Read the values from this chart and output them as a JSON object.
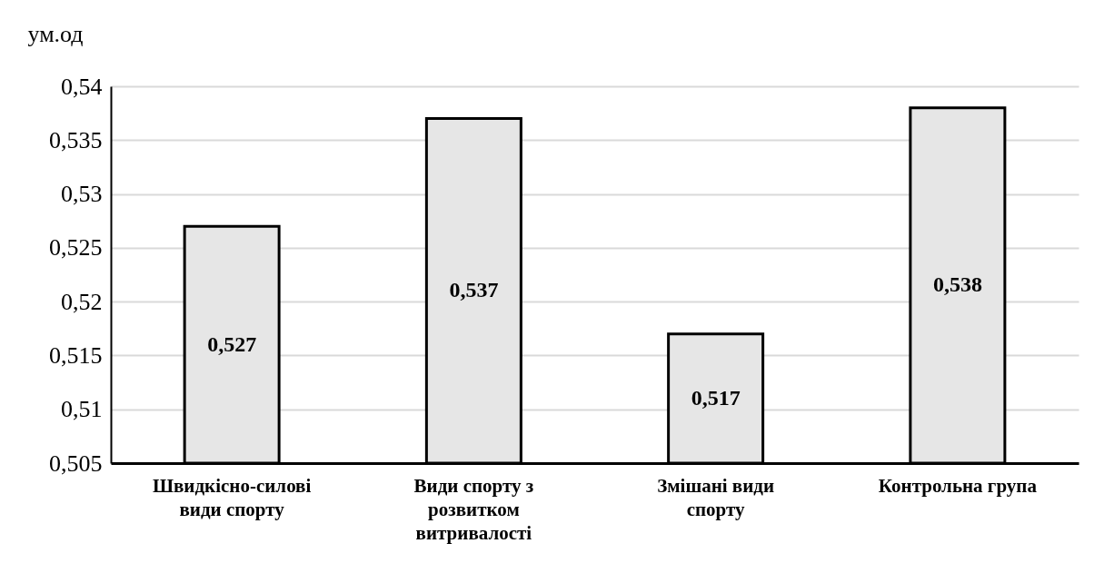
{
  "chart_data": {
    "type": "bar",
    "ylabel": "ум.од",
    "categories": [
      "Швидкісно-силові види спорту",
      "Види спорту з розвитком витривалості",
      "Змішані види спорту",
      "Контрольна група"
    ],
    "values": [
      0.527,
      0.537,
      0.517,
      0.538
    ],
    "value_labels": [
      "0,527",
      "0,537",
      "0,517",
      "0,538"
    ],
    "color": "#e6e6e6",
    "ylim": [
      0.505,
      0.54
    ],
    "yticks": [
      {
        "value": 0.505,
        "label": "0,505"
      },
      {
        "value": 0.51,
        "label": "0,51"
      },
      {
        "value": 0.515,
        "label": "0,515"
      },
      {
        "value": 0.52,
        "label": "0,52"
      },
      {
        "value": 0.525,
        "label": "0,525"
      },
      {
        "value": 0.53,
        "label": "0,53"
      },
      {
        "value": 0.535,
        "label": "0,535"
      },
      {
        "value": 0.54,
        "label": "0,54"
      }
    ],
    "grid": "y"
  }
}
